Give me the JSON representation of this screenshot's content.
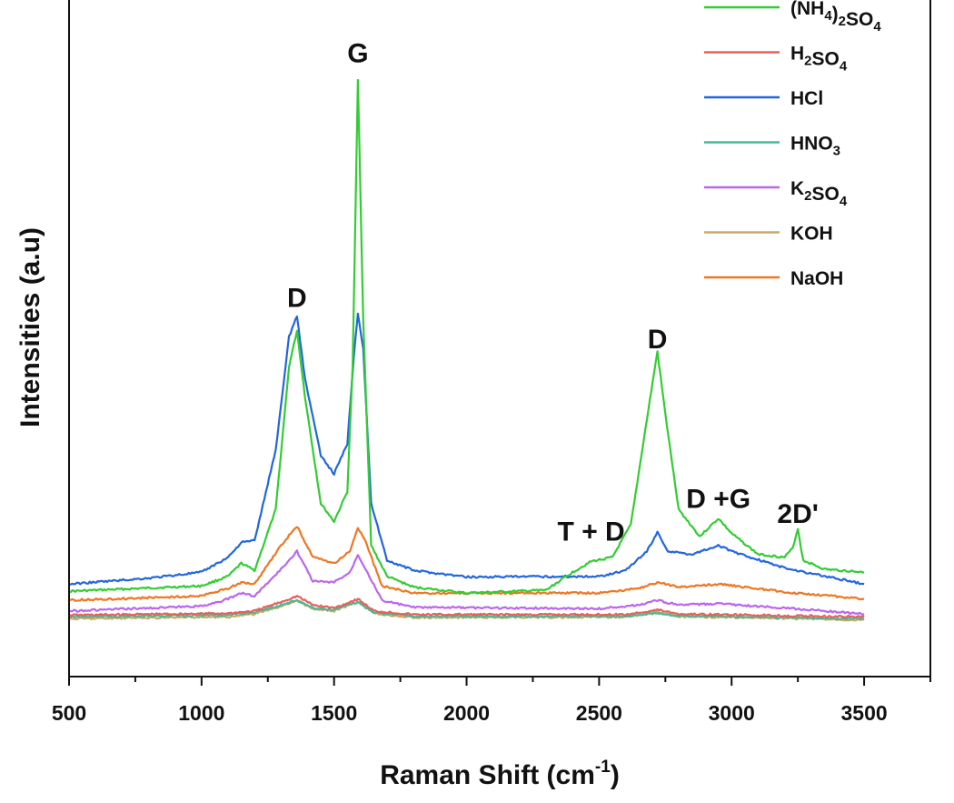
{
  "chart_data": {
    "type": "line",
    "xlabel": "Raman Shift (cm",
    "xlabel_sup": "-1",
    "xlabel_end": ")",
    "ylabel": "Intensities (a.u)",
    "xlim": [
      500,
      3750
    ],
    "ylim": [
      0,
      1
    ],
    "x_ticks": [
      500,
      1000,
      1500,
      2000,
      2500,
      3000,
      3500
    ],
    "y_ticks_shown": false,
    "grid": false,
    "legend_position": "top-right",
    "annotations": [
      {
        "text": "G",
        "x": 1590,
        "y": 1.03
      },
      {
        "text": "D",
        "x": 1360,
        "y": 0.62
      },
      {
        "text": "D",
        "x": 2720,
        "y": 0.55
      },
      {
        "text": "T + D",
        "x": 2470,
        "y": 0.228
      },
      {
        "text": "D +G",
        "x": 2950,
        "y": 0.283
      },
      {
        "text": "2D'",
        "x": 3250,
        "y": 0.258
      }
    ],
    "series": [
      {
        "name": "(NH4)2SO4",
        "legend_main": "(NH",
        "legend_sub1": "4",
        "legend_mid": ")",
        "legend_sub2": "2",
        "legend_tail": "SO",
        "legend_sub3": "4",
        "color": "#33cc33",
        "points": [
          [
            500,
            0.143
          ],
          [
            1000,
            0.152
          ],
          [
            1100,
            0.168
          ],
          [
            1150,
            0.19
          ],
          [
            1200,
            0.178
          ],
          [
            1280,
            0.28
          ],
          [
            1330,
            0.52
          ],
          [
            1360,
            0.58
          ],
          [
            1390,
            0.47
          ],
          [
            1450,
            0.29
          ],
          [
            1500,
            0.26
          ],
          [
            1550,
            0.31
          ],
          [
            1570,
            0.52
          ],
          [
            1590,
            1.0
          ],
          [
            1610,
            0.6
          ],
          [
            1640,
            0.22
          ],
          [
            1700,
            0.168
          ],
          [
            1800,
            0.15
          ],
          [
            2000,
            0.14
          ],
          [
            2300,
            0.145
          ],
          [
            2400,
            0.175
          ],
          [
            2470,
            0.193
          ],
          [
            2550,
            0.2
          ],
          [
            2620,
            0.255
          ],
          [
            2680,
            0.43
          ],
          [
            2720,
            0.545
          ],
          [
            2750,
            0.44
          ],
          [
            2800,
            0.28
          ],
          [
            2880,
            0.235
          ],
          [
            2950,
            0.265
          ],
          [
            3000,
            0.24
          ],
          [
            3100,
            0.205
          ],
          [
            3200,
            0.2
          ],
          [
            3230,
            0.215
          ],
          [
            3250,
            0.248
          ],
          [
            3270,
            0.195
          ],
          [
            3350,
            0.18
          ],
          [
            3500,
            0.175
          ]
        ]
      },
      {
        "name": "H2SO4",
        "legend_main": "H",
        "legend_sub1": "2",
        "legend_tail": "SO",
        "legend_sub3": "4",
        "color": "#e8605a",
        "points": [
          [
            500,
            0.103
          ],
          [
            1100,
            0.106
          ],
          [
            1200,
            0.11
          ],
          [
            1300,
            0.125
          ],
          [
            1360,
            0.135
          ],
          [
            1420,
            0.12
          ],
          [
            1500,
            0.115
          ],
          [
            1590,
            0.13
          ],
          [
            1650,
            0.11
          ],
          [
            1800,
            0.104
          ],
          [
            2600,
            0.104
          ],
          [
            2720,
            0.112
          ],
          [
            2800,
            0.105
          ],
          [
            3500,
            0.1
          ]
        ]
      },
      {
        "name": "HCl",
        "legend_main": "HCl",
        "color": "#2266dd",
        "points": [
          [
            500,
            0.155
          ],
          [
            800,
            0.165
          ],
          [
            1000,
            0.175
          ],
          [
            1100,
            0.2
          ],
          [
            1150,
            0.225
          ],
          [
            1200,
            0.228
          ],
          [
            1280,
            0.38
          ],
          [
            1330,
            0.57
          ],
          [
            1360,
            0.605
          ],
          [
            1390,
            0.5
          ],
          [
            1450,
            0.37
          ],
          [
            1500,
            0.34
          ],
          [
            1550,
            0.39
          ],
          [
            1575,
            0.54
          ],
          [
            1590,
            0.61
          ],
          [
            1610,
            0.55
          ],
          [
            1640,
            0.29
          ],
          [
            1700,
            0.195
          ],
          [
            1800,
            0.178
          ],
          [
            2000,
            0.167
          ],
          [
            2500,
            0.168
          ],
          [
            2600,
            0.178
          ],
          [
            2680,
            0.21
          ],
          [
            2720,
            0.242
          ],
          [
            2760,
            0.21
          ],
          [
            2850,
            0.205
          ],
          [
            2950,
            0.22
          ],
          [
            3000,
            0.21
          ],
          [
            3200,
            0.182
          ],
          [
            3500,
            0.155
          ]
        ]
      },
      {
        "name": "HNO3",
        "legend_main": "HNO",
        "legend_sub1": "3",
        "color": "#44bb99",
        "points": [
          [
            500,
            0.1
          ],
          [
            1100,
            0.103
          ],
          [
            1200,
            0.108
          ],
          [
            1300,
            0.12
          ],
          [
            1360,
            0.128
          ],
          [
            1420,
            0.115
          ],
          [
            1500,
            0.112
          ],
          [
            1590,
            0.125
          ],
          [
            1650,
            0.108
          ],
          [
            1800,
            0.101
          ],
          [
            2600,
            0.101
          ],
          [
            2720,
            0.107
          ],
          [
            2800,
            0.102
          ],
          [
            3500,
            0.097
          ]
        ]
      },
      {
        "name": "K2SO4",
        "legend_main": "K",
        "legend_sub1": "2",
        "legend_tail": "SO",
        "legend_sub3": "4",
        "color": "#bb66ee",
        "points": [
          [
            500,
            0.11
          ],
          [
            1000,
            0.118
          ],
          [
            1100,
            0.13
          ],
          [
            1150,
            0.14
          ],
          [
            1200,
            0.135
          ],
          [
            1300,
            0.18
          ],
          [
            1360,
            0.21
          ],
          [
            1420,
            0.16
          ],
          [
            1500,
            0.158
          ],
          [
            1560,
            0.175
          ],
          [
            1590,
            0.205
          ],
          [
            1620,
            0.18
          ],
          [
            1680,
            0.128
          ],
          [
            1800,
            0.116
          ],
          [
            2500,
            0.114
          ],
          [
            2650,
            0.12
          ],
          [
            2720,
            0.128
          ],
          [
            2800,
            0.12
          ],
          [
            2950,
            0.122
          ],
          [
            3200,
            0.115
          ],
          [
            3500,
            0.105
          ]
        ]
      },
      {
        "name": "KOH",
        "legend_main": "KOH",
        "color": "#ccaa66",
        "points": [
          [
            500,
            0.097
          ],
          [
            1100,
            0.1
          ],
          [
            1200,
            0.105
          ],
          [
            1300,
            0.118
          ],
          [
            1360,
            0.128
          ],
          [
            1420,
            0.113
          ],
          [
            1500,
            0.11
          ],
          [
            1590,
            0.125
          ],
          [
            1650,
            0.106
          ],
          [
            1800,
            0.099
          ],
          [
            2600,
            0.1
          ],
          [
            2720,
            0.108
          ],
          [
            2800,
            0.101
          ],
          [
            3500,
            0.095
          ]
        ]
      },
      {
        "name": "NaOH",
        "legend_main": "NaOH",
        "color": "#ee7722",
        "points": [
          [
            500,
            0.128
          ],
          [
            1000,
            0.135
          ],
          [
            1100,
            0.148
          ],
          [
            1150,
            0.158
          ],
          [
            1200,
            0.155
          ],
          [
            1300,
            0.22
          ],
          [
            1360,
            0.252
          ],
          [
            1420,
            0.2
          ],
          [
            1500,
            0.19
          ],
          [
            1560,
            0.21
          ],
          [
            1590,
            0.25
          ],
          [
            1620,
            0.225
          ],
          [
            1680,
            0.152
          ],
          [
            1800,
            0.14
          ],
          [
            2500,
            0.14
          ],
          [
            2650,
            0.148
          ],
          [
            2720,
            0.158
          ],
          [
            2800,
            0.15
          ],
          [
            2950,
            0.155
          ],
          [
            3200,
            0.142
          ],
          [
            3500,
            0.13
          ]
        ]
      }
    ]
  }
}
